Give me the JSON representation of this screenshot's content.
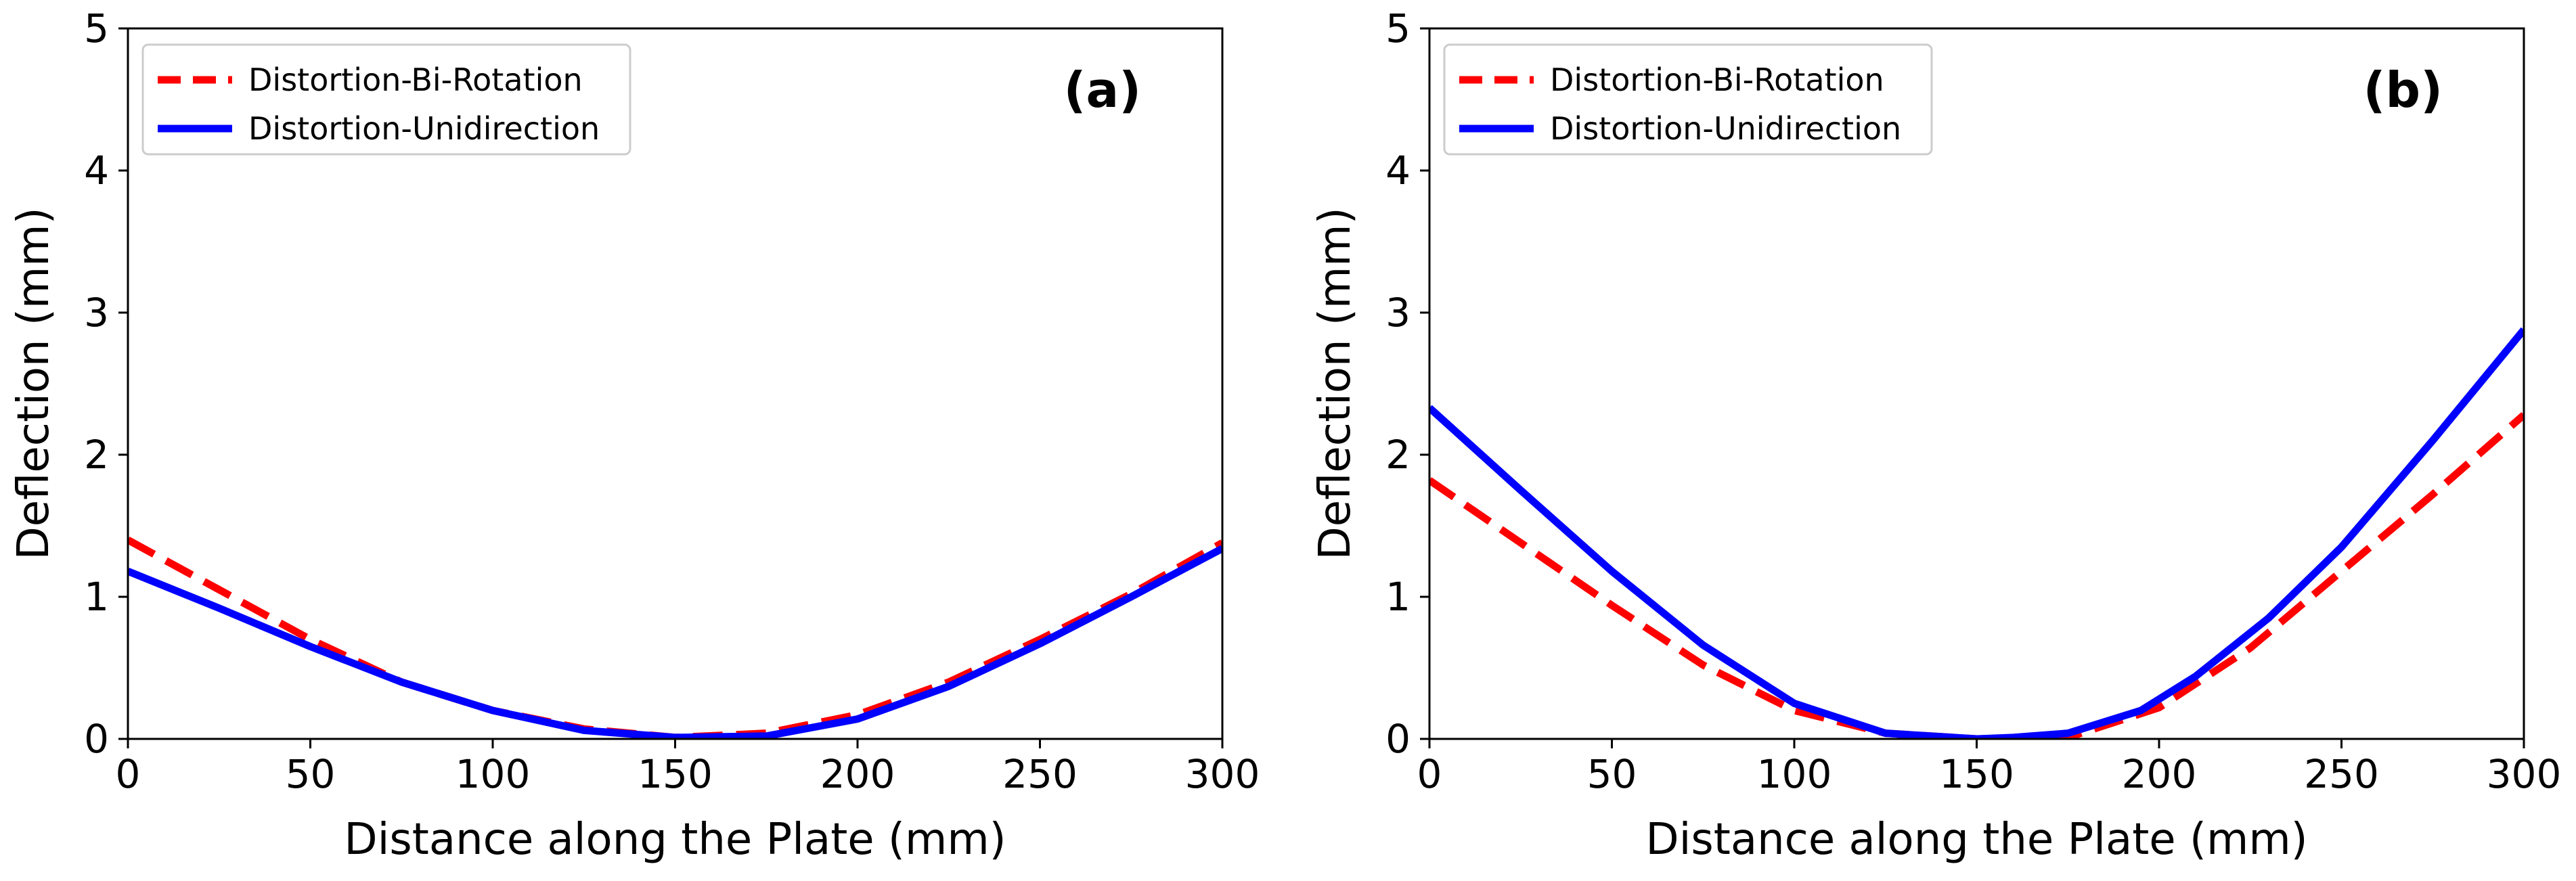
{
  "figure": {
    "panels_count": 2
  },
  "chart_data": [
    {
      "type": "line",
      "panel_label": "(a)",
      "xlabel": "Distance along the Plate (mm)",
      "ylabel": "Deflection (mm)",
      "xlim": [
        0,
        300
      ],
      "ylim": [
        0,
        5
      ],
      "xticks": [
        0,
        50,
        100,
        150,
        200,
        250,
        300
      ],
      "yticks": [
        0,
        1,
        2,
        3,
        4,
        5
      ],
      "legend_position": "top-left",
      "series": [
        {
          "name": "Distortion-Bi-Rotation",
          "color": "#ff0000",
          "style": "dashed",
          "x": [
            0,
            25,
            50,
            75,
            100,
            125,
            150,
            175,
            200,
            225,
            250,
            275,
            300
          ],
          "y": [
            1.4,
            1.05,
            0.7,
            0.4,
            0.2,
            0.07,
            0.01,
            0.04,
            0.17,
            0.4,
            0.7,
            1.02,
            1.38
          ]
        },
        {
          "name": "Distortion-Unidirection",
          "color": "#0000ff",
          "style": "solid",
          "x": [
            0,
            25,
            50,
            75,
            100,
            125,
            150,
            175,
            200,
            225,
            250,
            275,
            300
          ],
          "y": [
            1.18,
            0.92,
            0.65,
            0.4,
            0.2,
            0.06,
            0.01,
            0.02,
            0.14,
            0.37,
            0.67,
            1.0,
            1.34
          ]
        }
      ]
    },
    {
      "type": "line",
      "panel_label": "(b)",
      "xlabel": "Distance along the Plate (mm)",
      "ylabel": "Deflection (mm)",
      "xlim": [
        0,
        300
      ],
      "ylim": [
        0,
        5
      ],
      "xticks": [
        0,
        50,
        100,
        150,
        200,
        250,
        300
      ],
      "yticks": [
        0,
        1,
        2,
        3,
        4,
        5
      ],
      "legend_position": "top-left",
      "series": [
        {
          "name": "Distortion-Bi-Rotation",
          "color": "#ff0000",
          "style": "dashed",
          "x": [
            0,
            25,
            50,
            75,
            100,
            125,
            150,
            175,
            200,
            225,
            250,
            275,
            300
          ],
          "y": [
            1.82,
            1.38,
            0.94,
            0.52,
            0.2,
            0.04,
            0.0,
            0.01,
            0.22,
            0.64,
            1.18,
            1.72,
            2.28
          ]
        },
        {
          "name": "Distortion-Unidirection",
          "color": "#0000ff",
          "style": "solid",
          "x": [
            0,
            25,
            50,
            75,
            100,
            125,
            150,
            160,
            175,
            195,
            210,
            230,
            250,
            275,
            300
          ],
          "y": [
            2.33,
            1.75,
            1.18,
            0.66,
            0.25,
            0.04,
            0.0,
            0.01,
            0.04,
            0.2,
            0.44,
            0.85,
            1.35,
            2.1,
            2.88
          ]
        }
      ]
    }
  ]
}
